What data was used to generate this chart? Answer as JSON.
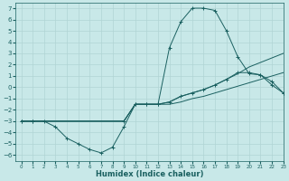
{
  "bg_color": "#c8e8e8",
  "grid_color": "#b0d4d4",
  "line_color": "#1a6060",
  "xlabel": "Humidex (Indice chaleur)",
  "xlim": [
    -0.5,
    23
  ],
  "ylim": [
    -6.5,
    7.5
  ],
  "xticks": [
    0,
    1,
    2,
    3,
    4,
    5,
    6,
    7,
    8,
    9,
    10,
    11,
    12,
    13,
    14,
    15,
    16,
    17,
    18,
    19,
    20,
    21,
    22,
    23
  ],
  "yticks": [
    -6,
    -5,
    -4,
    -3,
    -2,
    -1,
    0,
    1,
    2,
    3,
    4,
    5,
    6,
    7
  ],
  "series": [
    {
      "x": [
        0,
        1,
        2,
        3,
        4,
        5,
        6,
        7,
        8,
        9,
        10,
        11,
        12,
        13,
        14,
        15,
        16,
        17,
        18,
        19,
        20,
        21,
        22,
        23
      ],
      "y": [
        -3,
        -3,
        -3,
        -3.5,
        -4.5,
        -5.0,
        -5.5,
        -5.8,
        -5.3,
        -3.5,
        -1.5,
        -1.5,
        -1.5,
        3.5,
        5.8,
        7.0,
        7.0,
        6.8,
        5.0,
        2.7,
        1.2,
        1.1,
        0.2,
        -0.5
      ],
      "has_marker": true
    },
    {
      "x": [
        0,
        9,
        10,
        11,
        12,
        13,
        14,
        15,
        16,
        17,
        18,
        19,
        20,
        21,
        22,
        23
      ],
      "y": [
        -3,
        -3,
        -1.5,
        -1.5,
        -1.5,
        -1.5,
        -1.3,
        -1.0,
        -0.8,
        -0.5,
        -0.2,
        0.1,
        0.4,
        0.7,
        1.0,
        1.3
      ],
      "has_marker": false
    },
    {
      "x": [
        0,
        9,
        10,
        11,
        12,
        13,
        14,
        15,
        16,
        17,
        18,
        19,
        20,
        21,
        22,
        23
      ],
      "y": [
        -3,
        -3,
        -1.5,
        -1.5,
        -1.5,
        -1.3,
        -0.8,
        -0.5,
        -0.2,
        0.2,
        0.7,
        1.2,
        1.8,
        2.2,
        2.6,
        3.0
      ],
      "has_marker": false
    },
    {
      "x": [
        0,
        1,
        9,
        10,
        11,
        12,
        13,
        14,
        15,
        16,
        17,
        18,
        19,
        20,
        21,
        22,
        23
      ],
      "y": [
        -3,
        -3,
        -3,
        -1.5,
        -1.5,
        -1.5,
        -1.3,
        -0.8,
        -0.5,
        -0.2,
        0.2,
        0.7,
        1.3,
        1.3,
        1.1,
        0.5,
        -0.5
      ],
      "has_marker": true
    }
  ],
  "xlabel_fontsize": 6,
  "xlabel_fontweight": "bold",
  "tick_labelsize": 5
}
